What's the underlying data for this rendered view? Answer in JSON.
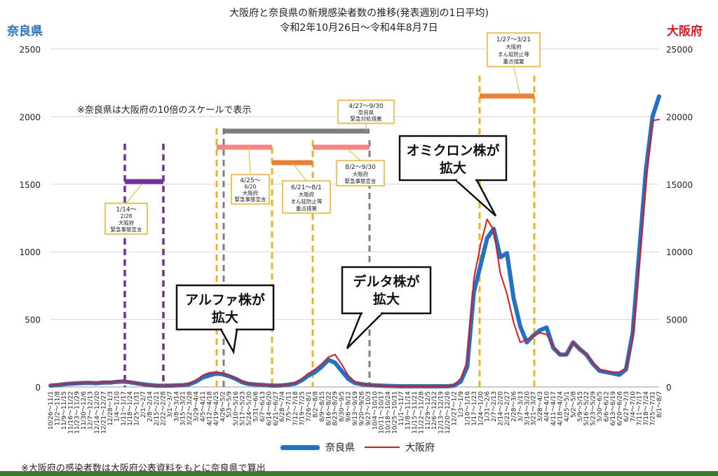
{
  "header": {
    "title": "大阪府と奈良県の新規感染者数の推移(発表週別の1日平均)",
    "subtitle": "令和2年10月26日～令和4年8月7日",
    "left_axis_title": "奈良県",
    "right_axis_title": "大阪府",
    "left_axis_color": "#1f72c6",
    "right_axis_color": "#e8141d"
  },
  "notes": {
    "scale_note": "※奈良県は大阪府の10倍のスケールで表示",
    "footnote": "※大阪府の感染者数は大阪府公表資料をもとに奈良県で算出"
  },
  "legend": {
    "nara": "奈良県",
    "osaka": "大阪府"
  },
  "callouts": [
    {
      "id": "alpha",
      "lines": [
        "アルファ株が",
        "拡大"
      ]
    },
    {
      "id": "delta",
      "lines": [
        "デルタ株が",
        "拡大"
      ]
    },
    {
      "id": "omicron",
      "lines": [
        "オミクロン株が",
        "拡大"
      ]
    }
  ],
  "period_labels": [
    {
      "id": "p1",
      "lines": [
        "1/14～",
        "2/28",
        "大阪府",
        "緊急事態宣言"
      ]
    },
    {
      "id": "p2",
      "lines": [
        "4/25～",
        "6/20",
        "大阪府",
        "緊急事態宣言"
      ]
    },
    {
      "id": "p3",
      "lines": [
        "6/21～8/1",
        "大阪府",
        "まん延防止等",
        "重点措置"
      ]
    },
    {
      "id": "p4",
      "lines": [
        "4/27～9/30",
        "奈良県",
        "緊急対処措置"
      ]
    },
    {
      "id": "p5",
      "lines": [
        "8/2～9/30",
        "大阪府",
        "緊急事態宣言"
      ]
    },
    {
      "id": "p6",
      "lines": [
        "1/27～3/21",
        "大阪府",
        "まん延防止等",
        "重点措置"
      ]
    }
  ],
  "chart_data": {
    "type": "line",
    "left_axis": {
      "label": "奈良県",
      "ticks": [
        0,
        500,
        1000,
        1500,
        2000,
        2500
      ],
      "ylim": [
        0,
        2500
      ]
    },
    "right_axis": {
      "label": "大阪府",
      "ticks": [
        0,
        5000,
        10000,
        15000,
        20000,
        25000
      ],
      "ylim": [
        0,
        25000
      ]
    },
    "grid": true,
    "legend_position": "bottom",
    "categories": [
      "10/26～11/1",
      "11/2～11/8",
      "11/9～11/15",
      "11/16～11/22",
      "11/23～11/29",
      "11/30～12/6",
      "12/7～12/13",
      "12/14～12/20",
      "12/21～12/27",
      "12/28～1/3",
      "1/4～1/10",
      "1/11～1/17",
      "1/18～1/24",
      "1/25～1/31",
      "2/1～2/7",
      "2/8～2/14",
      "2/15～2/21",
      "2/22～2/28",
      "3/1～3/7",
      "3/8～3/14",
      "3/15～3/21",
      "3/22～3/28",
      "3/29～4/4",
      "4/5～4/11",
      "4/12～4/18",
      "4/19～4/25",
      "4/26～5/2",
      "5/3～5/9",
      "5/10～5/16",
      "5/17～5/23",
      "5/24～5/30",
      "5/31～6/6",
      "6/7～6/13",
      "6/14～6/20",
      "6/21～6/27",
      "6/28～7/4",
      "7/5～7/11",
      "7/12～7/18",
      "7/19～7/25",
      "7/26～8/1",
      "8/2～8/8",
      "8/9～8/15",
      "8/16～8/22",
      "8/23～8/29",
      "8/30～9/5",
      "9/6～9/12",
      "9/13～9/19",
      "9/20～9/26",
      "9/27～10/3",
      "10/4～10/10",
      "10/11～10/17",
      "10/18～10/24",
      "10/25～10/31",
      "11/1～11/7",
      "11/8～11/14",
      "11/15～11/21",
      "11/22～11/28",
      "11/29～12/5",
      "12/6～12/12",
      "12/13～12/19",
      "12/20～12/26",
      "12/27～1/2",
      "1/3～1/9",
      "1/10～1/16",
      "1/17～1/23",
      "1/24～1/30",
      "1/31～2/6",
      "2/7～2/13",
      "2/14～2/20",
      "2/21～2/27",
      "2/28～3/6",
      "3/7～3/13",
      "3/14～3/20",
      "3/21～3/27",
      "3/28～4/3",
      "4/4～4/10",
      "4/11～4/17",
      "4/18～4/24",
      "4/25～5/1",
      "5/2～5/8",
      "5/9～5/15",
      "5/16～5/22",
      "5/23～5/29",
      "5/30～6/5",
      "6/6～6/12",
      "6/13～6/19",
      "6/20～6/26",
      "6/27～7/3",
      "7/4～7/10",
      "7/11～7/17",
      "7/18～7/24",
      "7/25～7/31",
      "8/1～8/7"
    ],
    "series": [
      {
        "name": "奈良県",
        "axis": "left",
        "color": "#1f72c6",
        "values": [
          10,
          14,
          20,
          24,
          27,
          30,
          30,
          28,
          33,
          32,
          38,
          40,
          35,
          27,
          20,
          14,
          10,
          9,
          10,
          12,
          13,
          20,
          40,
          70,
          85,
          100,
          95,
          80,
          60,
          35,
          22,
          18,
          15,
          12,
          10,
          12,
          17,
          25,
          50,
          85,
          110,
          150,
          200,
          180,
          120,
          60,
          30,
          20,
          15,
          12,
          10,
          8,
          6,
          5,
          5,
          5,
          5,
          5,
          5,
          5,
          5,
          10,
          40,
          150,
          700,
          900,
          1100,
          1170,
          960,
          990,
          660,
          450,
          330,
          380,
          420,
          440,
          290,
          240,
          240,
          330,
          280,
          240,
          170,
          120,
          110,
          100,
          90,
          130,
          400,
          1000,
          1600,
          2000,
          2150
        ]
      },
      {
        "name": "大阪府",
        "axis": "right",
        "color": "#e8141d",
        "values": [
          120,
          170,
          210,
          260,
          290,
          310,
          320,
          300,
          340,
          360,
          420,
          460,
          400,
          280,
          180,
          120,
          90,
          80,
          90,
          120,
          150,
          250,
          500,
          850,
          1050,
          1100,
          1000,
          850,
          650,
          400,
          250,
          200,
          150,
          120,
          100,
          120,
          180,
          300,
          600,
          1000,
          1300,
          1700,
          2200,
          2400,
          1700,
          850,
          400,
          220,
          150,
          100,
          80,
          60,
          50,
          50,
          50,
          50,
          50,
          50,
          50,
          50,
          60,
          150,
          600,
          1900,
          8000,
          10500,
          12400,
          11600,
          8400,
          6900,
          4800,
          3300,
          3500,
          3800,
          4000,
          3900,
          3000,
          2400,
          2400,
          3300,
          2800,
          2400,
          1800,
          1300,
          1200,
          1100,
          1100,
          1400,
          3500,
          9000,
          15000,
          19700,
          19800
        ]
      }
    ]
  }
}
